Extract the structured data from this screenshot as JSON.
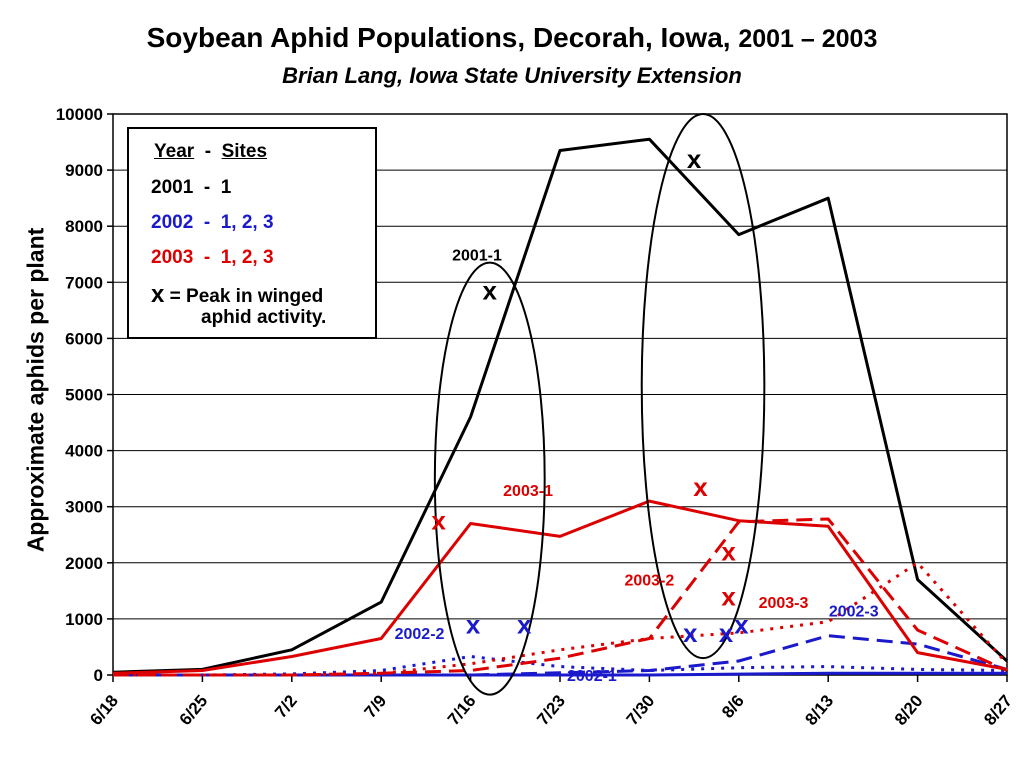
{
  "title_main": "Soybean Aphid Populations, Decorah, Iowa,",
  "title_years": "2001 – 2003",
  "subtitle": "Brian Lang, Iowa State University Extension",
  "legend": {
    "year_header": "Year",
    "dash": "-",
    "sites_header": "Sites",
    "rows": [
      "2001  -  1",
      "2002  -  1, 2, 3",
      "2003  -  1, 2, 3"
    ],
    "x_symbol": "x",
    "x_text_1": "= Peak in winged",
    "x_text_2": "aphid activity."
  },
  "colors": {
    "y2001": "#000000",
    "y2002": "#1a1acc",
    "y2003": "#dd0000"
  },
  "chart_data": {
    "type": "line",
    "title": "Soybean Aphid Populations, Decorah, Iowa, 2001 – 2003",
    "subtitle": "Brian Lang, Iowa State University Extension",
    "xlabel": "",
    "ylabel": "Approximate aphids per plant",
    "xlim": [
      0,
      70
    ],
    "ylim": [
      0,
      10000
    ],
    "grid": true,
    "x_tick_values": [
      0,
      7,
      14,
      21,
      28,
      35,
      42,
      49,
      56,
      63,
      70
    ],
    "x_tick_labels": [
      "6/18",
      "6/25",
      "7/2",
      "7/9",
      "7/16",
      "7/23",
      "7/30",
      "8/6",
      "8/13",
      "8/20",
      "8/27"
    ],
    "y_ticks": [
      0,
      1000,
      2000,
      3000,
      4000,
      5000,
      6000,
      7000,
      8000,
      9000,
      10000
    ],
    "series": [
      {
        "name": "2001-1",
        "color": "#000000",
        "dash": "solid",
        "width": 3,
        "points": [
          [
            0,
            50
          ],
          [
            7,
            100
          ],
          [
            14,
            450
          ],
          [
            21,
            1300
          ],
          [
            28,
            4600
          ],
          [
            35,
            9350
          ],
          [
            42,
            9550
          ],
          [
            49,
            7850
          ],
          [
            56,
            8500
          ],
          [
            63,
            1700
          ],
          [
            70,
            250
          ]
        ]
      },
      {
        "name": "2002-1",
        "color": "#1a1acc",
        "dash": "solid",
        "width": 3,
        "points": [
          [
            0,
            0
          ],
          [
            14,
            0
          ],
          [
            28,
            0
          ],
          [
            42,
            0
          ],
          [
            56,
            30
          ],
          [
            63,
            30
          ],
          [
            70,
            30
          ]
        ]
      },
      {
        "name": "2002-2",
        "color": "#1a1acc",
        "dash": "dot",
        "width": 3,
        "points": [
          [
            0,
            0
          ],
          [
            7,
            0
          ],
          [
            14,
            20
          ],
          [
            21,
            80
          ],
          [
            28,
            330
          ],
          [
            35,
            150
          ],
          [
            42,
            80
          ],
          [
            49,
            130
          ],
          [
            56,
            150
          ],
          [
            63,
            100
          ],
          [
            70,
            80
          ]
        ]
      },
      {
        "name": "2002-3",
        "color": "#1a1acc",
        "dash": "dash",
        "width": 3,
        "points": [
          [
            0,
            0
          ],
          [
            14,
            0
          ],
          [
            28,
            0
          ],
          [
            35,
            40
          ],
          [
            42,
            80
          ],
          [
            49,
            250
          ],
          [
            56,
            700
          ],
          [
            63,
            550
          ],
          [
            70,
            100
          ]
        ]
      },
      {
        "name": "2003-1",
        "color": "#dd0000",
        "dash": "solid",
        "width": 3,
        "points": [
          [
            0,
            30
          ],
          [
            7,
            80
          ],
          [
            14,
            330
          ],
          [
            21,
            650
          ],
          [
            28,
            2700
          ],
          [
            35,
            2470
          ],
          [
            42,
            3100
          ],
          [
            49,
            2750
          ],
          [
            56,
            2650
          ],
          [
            63,
            400
          ],
          [
            70,
            100
          ]
        ]
      },
      {
        "name": "2003-2",
        "color": "#dd0000",
        "dash": "dash",
        "width": 3,
        "points": [
          [
            0,
            0
          ],
          [
            14,
            0
          ],
          [
            21,
            30
          ],
          [
            28,
            80
          ],
          [
            35,
            300
          ],
          [
            42,
            650
          ],
          [
            49,
            2730
          ],
          [
            56,
            2780
          ],
          [
            63,
            800
          ],
          [
            70,
            80
          ]
        ]
      },
      {
        "name": "2003-3",
        "color": "#dd0000",
        "dash": "dot",
        "width": 3,
        "points": [
          [
            0,
            0
          ],
          [
            14,
            0
          ],
          [
            21,
            30
          ],
          [
            28,
            200
          ],
          [
            35,
            450
          ],
          [
            42,
            650
          ],
          [
            49,
            750
          ],
          [
            56,
            950
          ],
          [
            63,
            2000
          ],
          [
            70,
            200
          ]
        ]
      }
    ],
    "annotations": [
      {
        "text": "2001-1",
        "x": 28.5,
        "y": 7500,
        "color": "#000000"
      },
      {
        "text": "2003-1",
        "x": 32.5,
        "y": 3300,
        "color": "#dd0000"
      },
      {
        "text": "2003-2",
        "x": 42.0,
        "y": 1700,
        "color": "#dd0000"
      },
      {
        "text": "2003-3",
        "x": 52.5,
        "y": 1300,
        "color": "#dd0000"
      },
      {
        "text": "2002-3",
        "x": 58.0,
        "y": 1150,
        "color": "#1a1acc"
      },
      {
        "text": "2002-2",
        "x": 24.0,
        "y": 750,
        "color": "#1a1acc"
      },
      {
        "text": "2002-1",
        "x": 37.5,
        "y": 0,
        "color": "#1a1acc"
      }
    ],
    "peak_markers": [
      {
        "x": 29.5,
        "y": 6850,
        "color": "#000000"
      },
      {
        "x": 45.5,
        "y": 9200,
        "color": "#000000"
      },
      {
        "x": 25.5,
        "y": 2750,
        "color": "#dd0000"
      },
      {
        "x": 46.0,
        "y": 3350,
        "color": "#dd0000"
      },
      {
        "x": 48.2,
        "y": 2200,
        "color": "#dd0000"
      },
      {
        "x": 48.2,
        "y": 1400,
        "color": "#dd0000"
      },
      {
        "x": 28.2,
        "y": 900,
        "color": "#1a1acc"
      },
      {
        "x": 32.2,
        "y": 900,
        "color": "#1a1acc"
      },
      {
        "x": 45.2,
        "y": 750,
        "color": "#1a1acc"
      },
      {
        "x": 48.0,
        "y": 750,
        "color": "#1a1acc"
      },
      {
        "x": 49.2,
        "y": 900,
        "color": "#1a1acc"
      }
    ],
    "peak_symbol": "x",
    "ellipses": [
      {
        "cx": 29.5,
        "cy": 3500,
        "rx_days": 4.3,
        "ry_value": 3850
      },
      {
        "cx": 46.2,
        "cy": 5150,
        "rx_days": 4.8,
        "ry_value": 4850
      }
    ]
  }
}
